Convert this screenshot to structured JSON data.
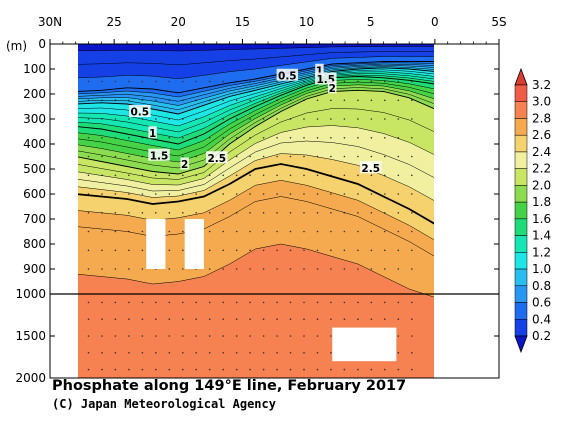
{
  "chart_data": {
    "type": "heatmap",
    "title": "Phosphate along 149°E line, February 2017",
    "credit": "(C) Japan Meteorological Agency",
    "xlabel": "",
    "ylabel": "(m)",
    "x_ticks": [
      "30N",
      "25",
      "20",
      "15",
      "10",
      "5",
      "0",
      "5S"
    ],
    "x_tick_values": [
      30,
      25,
      20,
      15,
      10,
      5,
      0,
      -5
    ],
    "xlim": [
      30,
      -5
    ],
    "y_ticks": [
      "0",
      "100",
      "200",
      "300",
      "400",
      "500",
      "600",
      "700",
      "800",
      "900",
      "1000",
      "1500",
      "2000"
    ],
    "y_tick_values": [
      0,
      100,
      200,
      300,
      400,
      500,
      600,
      700,
      800,
      900,
      1000,
      1500,
      2000
    ],
    "ylim": [
      0,
      2000
    ],
    "y_scale_break_depth": 1000,
    "data_extent_lat": [
      28,
      0
    ],
    "levels": [
      0.2,
      0.4,
      0.6,
      0.8,
      1.0,
      1.2,
      1.4,
      1.6,
      1.8,
      2.0,
      2.2,
      2.4,
      2.6,
      2.8,
      3.0,
      3.2
    ],
    "colorbar_labels": [
      "3.2",
      "3.0",
      "2.8",
      "2.6",
      "2.4",
      "2.2",
      "2.0",
      "1.8",
      "1.6",
      "1.4",
      "1.2",
      "1.0",
      "0.8",
      "0.6",
      "0.4",
      "0.2"
    ],
    "colors": [
      "#0a14c8",
      "#1440e6",
      "#1e6cf0",
      "#2896f5",
      "#28bef0",
      "#1ee6e6",
      "#14e6b4",
      "#1edc78",
      "#46d246",
      "#8cdc50",
      "#c8e664",
      "#f0f0a0",
      "#f5d26e",
      "#f5aa50",
      "#f58250",
      "#f05a46",
      "#dc3c32"
    ],
    "contour_labels": [
      "0.5",
      "0.5",
      "1",
      "1",
      "1.5",
      "1.5",
      "2",
      "2",
      "2.5",
      "2.5"
    ],
    "profile_lats": [
      28,
      26,
      24,
      22,
      20,
      18,
      16,
      14,
      12,
      10,
      8,
      6,
      4,
      2,
      0
    ],
    "isoline_depths_m": {
      "0.5": [
        190,
        185,
        175,
        180,
        195,
        175,
        155,
        140,
        120,
        100,
        80,
        75,
        70,
        70,
        70
      ],
      "1.0": [
        240,
        235,
        240,
        260,
        280,
        245,
        210,
        185,
        160,
        135,
        110,
        100,
        95,
        100,
        110
      ],
      "1.5": [
        330,
        340,
        360,
        380,
        400,
        360,
        300,
        250,
        205,
        165,
        135,
        130,
        135,
        145,
        160
      ],
      "2.0": [
        450,
        470,
        490,
        510,
        520,
        490,
        400,
        330,
        270,
        220,
        190,
        185,
        190,
        215,
        260
      ],
      "2.5": [
        600,
        610,
        620,
        640,
        630,
        610,
        560,
        500,
        480,
        500,
        530,
        560,
        610,
        660,
        720
      ]
    },
    "missing_blocks": [
      {
        "lat": [
          22.5,
          21
        ],
        "depth_m": [
          700,
          900
        ]
      },
      {
        "lat": [
          19.5,
          18
        ],
        "depth_m": [
          700,
          900
        ]
      },
      {
        "lat": [
          8,
          3
        ],
        "depth_m": [
          1400,
          1800
        ]
      }
    ]
  }
}
